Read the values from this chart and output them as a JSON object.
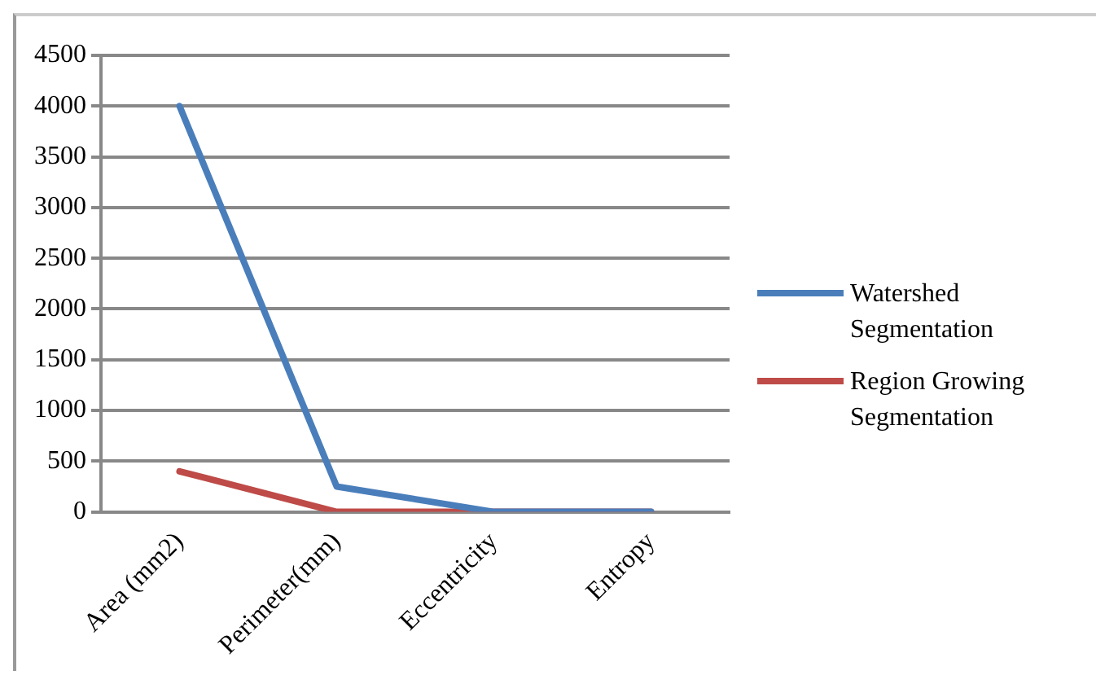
{
  "chart_data": {
    "type": "line",
    "categories": [
      "Area (mm2)",
      "Perimeter(mm)",
      "Eccentricity",
      "Entropy"
    ],
    "series": [
      {
        "name": "Watershed Segmentation",
        "color": "#4a7ebb",
        "values": [
          4000,
          250,
          0,
          0
        ]
      },
      {
        "name": "Region Growing Segmentation",
        "color": "#be4b48",
        "values": [
          400,
          0,
          0,
          0
        ]
      }
    ],
    "ylim": [
      0,
      4500
    ],
    "yticks": [
      0,
      500,
      1000,
      1500,
      2000,
      2500,
      3000,
      3500,
      4000,
      4500
    ],
    "grid": "y",
    "legend": "right",
    "marker": "none"
  }
}
